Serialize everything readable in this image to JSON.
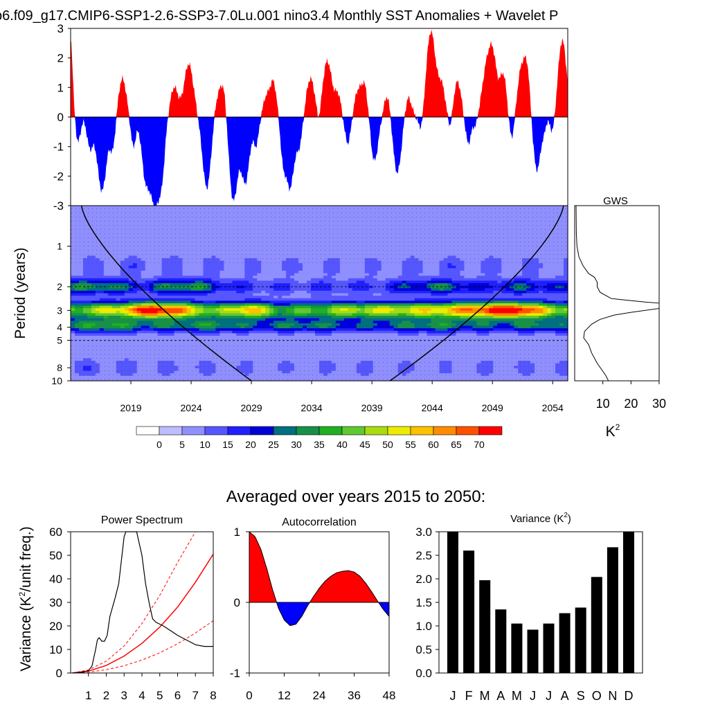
{
  "title": "p6.f09_g17.CMIP6-SSP1-2.6-SSP3-7.0Lu.001 nino3.4 Monthly SST Anomalies + Wavelet P",
  "colors": {
    "positive": "#ff0000",
    "negative": "#0000ff",
    "coi": "#000000",
    "significance_line": "#ff0000",
    "wavelet_levels": [
      "#ffffff",
      "#bdbdff",
      "#8f8fff",
      "#5656ff",
      "#2020ff",
      "#0000d8",
      "#006f80",
      "#189048",
      "#20b020",
      "#60c830",
      "#a8dc10",
      "#ecec00",
      "#ffc000",
      "#ff8c00",
      "#ff5000",
      "#ff0000"
    ]
  },
  "chart_data": [
    {
      "id": "anomaly",
      "type": "area",
      "ylim": [
        -3,
        3
      ],
      "yticks": [
        "3",
        "2",
        "1",
        "0",
        "-1",
        "-2",
        "-3"
      ],
      "x_range": [
        2014.0,
        2055.25
      ],
      "events": [
        [
          2014.0,
          2.6,
          0.22
        ],
        [
          2014.3,
          0.3,
          0.25
        ],
        [
          2014.6,
          -0.9,
          0.3
        ],
        [
          2015.6,
          -1.0,
          0.35
        ],
        [
          2016.6,
          -2.5,
          0.55
        ],
        [
          2017.5,
          -1.0,
          0.3
        ],
        [
          2018.3,
          1.3,
          0.45
        ],
        [
          2019.2,
          -1.0,
          0.3
        ],
        [
          2020.2,
          -1.9,
          0.45
        ],
        [
          2021.0,
          -2.9,
          0.55
        ],
        [
          2021.6,
          -1.4,
          0.35
        ],
        [
          2022.6,
          1.0,
          0.45
        ],
        [
          2023.8,
          1.8,
          0.55
        ],
        [
          2025.3,
          -2.4,
          0.5
        ],
        [
          2026.2,
          0.7,
          0.4
        ],
        [
          2026.7,
          1.0,
          0.35
        ],
        [
          2027.5,
          -2.8,
          0.5
        ],
        [
          2028.5,
          -2.2,
          0.5
        ],
        [
          2029.4,
          -0.9,
          0.3
        ],
        [
          2030.2,
          0.6,
          0.35
        ],
        [
          2030.8,
          1.2,
          0.4
        ],
        [
          2031.6,
          -1.1,
          0.3
        ],
        [
          2032.2,
          -2.4,
          0.5
        ],
        [
          2033.0,
          -0.9,
          0.35
        ],
        [
          2033.9,
          1.3,
          0.5
        ],
        [
          2034.6,
          -0.5,
          0.25
        ],
        [
          2035.3,
          1.9,
          0.55
        ],
        [
          2036.2,
          0.7,
          0.35
        ],
        [
          2037.0,
          -0.9,
          0.35
        ],
        [
          2037.8,
          0.8,
          0.4
        ],
        [
          2038.4,
          1.1,
          0.4
        ],
        [
          2039.2,
          -1.5,
          0.45
        ],
        [
          2040.3,
          0.8,
          0.4
        ],
        [
          2041.1,
          -1.9,
          0.5
        ],
        [
          2042.0,
          0.7,
          0.4
        ],
        [
          2043.1,
          -0.6,
          0.3
        ],
        [
          2043.9,
          2.9,
          0.55
        ],
        [
          2044.8,
          1.0,
          0.4
        ],
        [
          2045.5,
          -0.5,
          0.25
        ],
        [
          2046.1,
          1.2,
          0.45
        ],
        [
          2047.0,
          -0.9,
          0.35
        ],
        [
          2047.6,
          -0.3,
          0.2
        ],
        [
          2048.4,
          1.2,
          0.45
        ],
        [
          2049.0,
          2.2,
          0.5
        ],
        [
          2049.9,
          1.4,
          0.4
        ],
        [
          2050.6,
          -0.8,
          0.3
        ],
        [
          2051.4,
          1.6,
          0.45
        ],
        [
          2051.9,
          1.4,
          0.35
        ],
        [
          2052.7,
          -1.8,
          0.45
        ],
        [
          2053.3,
          -0.3,
          0.2
        ],
        [
          2054.0,
          -0.6,
          0.3
        ],
        [
          2054.8,
          2.6,
          0.5
        ]
      ]
    },
    {
      "id": "wavelet",
      "type": "heatmap",
      "ylabel": "Period (years)",
      "xticks": [
        "2019",
        "2024",
        "2029",
        "2034",
        "2039",
        "2044",
        "2049",
        "2054"
      ],
      "xtick_values": [
        2019,
        2024,
        2029,
        2034,
        2039,
        2044,
        2049,
        2054
      ],
      "yticks": [
        "1",
        "2",
        "3",
        "4",
        "5",
        "8",
        "10"
      ],
      "ytick_values": [
        1,
        2,
        3,
        4,
        5,
        8,
        10
      ],
      "period_range": [
        0.5,
        10
      ],
      "coi_bottom_years": [
        2029.0,
        2040.5
      ],
      "dashed_periods": [
        2,
        5
      ],
      "bands": [
        {
          "period": 3.0,
          "sigma": 0.2,
          "amp": [
            [
              2014,
              34
            ],
            [
              2018,
              48
            ],
            [
              2021,
              72
            ],
            [
              2023,
              58
            ],
            [
              2026,
              35
            ],
            [
              2029,
              55
            ],
            [
              2031,
              32
            ],
            [
              2034,
              34
            ],
            [
              2037,
              42
            ],
            [
              2040,
              44
            ],
            [
              2043,
              46
            ],
            [
              2046,
              54
            ],
            [
              2049,
              68
            ],
            [
              2051,
              72
            ],
            [
              2054,
              42
            ]
          ]
        },
        {
          "period": 2.0,
          "sigma": 0.18,
          "amp": [
            [
              2014,
              24
            ],
            [
              2017,
              26
            ],
            [
              2020,
              14
            ],
            [
              2023,
              28
            ],
            [
              2025,
              25
            ],
            [
              2027,
              12
            ],
            [
              2030,
              9
            ],
            [
              2033,
              8
            ],
            [
              2036,
              10
            ],
            [
              2039,
              9
            ],
            [
              2042,
              18
            ],
            [
              2045,
              24
            ],
            [
              2048,
              12
            ],
            [
              2051,
              20
            ],
            [
              2054,
              16
            ]
          ]
        },
        {
          "period": 3.9,
          "sigma": 0.16,
          "amp": [
            [
              2014,
              22
            ],
            [
              2017,
              30
            ],
            [
              2020,
              20
            ],
            [
              2023,
              22
            ],
            [
              2026,
              26
            ],
            [
              2029,
              18
            ],
            [
              2032,
              22
            ],
            [
              2035,
              22
            ],
            [
              2038,
              16
            ],
            [
              2041,
              20
            ],
            [
              2044,
              26
            ],
            [
              2047,
              20
            ],
            [
              2050,
              18
            ],
            [
              2053,
              24
            ],
            [
              2055,
              18
            ]
          ]
        },
        {
          "period": 1.4,
          "sigma": 0.25,
          "amp": [
            [
              2014,
              4
            ],
            [
              2020,
              5
            ],
            [
              2025,
              4
            ],
            [
              2030,
              3
            ],
            [
              2035,
              3
            ],
            [
              2040,
              3
            ],
            [
              2045,
              5
            ],
            [
              2050,
              4
            ],
            [
              2055,
              3
            ]
          ]
        },
        {
          "period": 8.0,
          "sigma": 0.22,
          "amp": [
            [
              2014,
              6
            ],
            [
              2020,
              4
            ],
            [
              2026,
              3
            ],
            [
              2032,
              2
            ],
            [
              2038,
              3
            ],
            [
              2044,
              2
            ],
            [
              2050,
              3
            ],
            [
              2055,
              4
            ]
          ]
        }
      ],
      "colorbar": {
        "labels": [
          "0",
          "5",
          "10",
          "15",
          "20",
          "25",
          "30",
          "35",
          "40",
          "45",
          "50",
          "55",
          "60",
          "65",
          "70"
        ],
        "levels": [
          0,
          5,
          10,
          15,
          20,
          25,
          30,
          35,
          40,
          45,
          50,
          55,
          60,
          65,
          70
        ]
      }
    },
    {
      "id": "gws",
      "type": "line",
      "title": "GWS",
      "xlim": [
        0,
        30
      ],
      "xticks": [
        "10",
        "20",
        "30"
      ],
      "xlabel": "K",
      "xlabel_sup": "2",
      "points": [
        [
          0.5,
          0.5
        ],
        [
          0.6,
          0.8
        ],
        [
          0.8,
          1.0
        ],
        [
          1.5,
          1.2
        ],
        [
          3,
          1.4
        ],
        [
          5,
          1.6
        ],
        [
          7,
          1.7
        ],
        [
          8,
          1.85
        ],
        [
          8,
          2.0
        ],
        [
          9,
          2.2
        ],
        [
          13,
          2.45
        ],
        [
          25,
          2.6
        ],
        [
          30,
          2.65
        ],
        [
          32,
          2.75
        ],
        [
          30,
          2.9
        ],
        [
          20,
          3.1
        ],
        [
          14,
          3.25
        ],
        [
          9,
          3.5
        ],
        [
          6,
          3.8
        ],
        [
          3.5,
          4.3
        ],
        [
          3.2,
          4.8
        ],
        [
          5,
          5.4
        ],
        [
          6,
          6.2
        ],
        [
          8,
          7.4
        ],
        [
          11,
          9.1
        ],
        [
          12,
          10
        ]
      ]
    },
    {
      "id": "power-spectrum",
      "type": "line",
      "section_title": "Averaged over years 2015 to 2050:",
      "title": "Power Spectrum",
      "ylabel": "Variance (K",
      "ylabel_sup": "2",
      "ylabel_tail": "/unit freq.)",
      "xlim": [
        0,
        8
      ],
      "ylim": [
        0,
        60
      ],
      "xticks": [
        "1",
        "2",
        "3",
        "4",
        "5",
        "6",
        "7",
        "8"
      ],
      "yticks": [
        "0",
        "10",
        "20",
        "30",
        "40",
        "50",
        "60"
      ],
      "spectrum": [
        [
          0.1,
          0
        ],
        [
          0.6,
          0.3
        ],
        [
          1.0,
          1
        ],
        [
          1.2,
          3
        ],
        [
          1.4,
          10
        ],
        [
          1.5,
          14
        ],
        [
          1.6,
          15
        ],
        [
          1.75,
          13.5
        ],
        [
          1.9,
          13.5
        ],
        [
          2.05,
          16
        ],
        [
          2.2,
          24
        ],
        [
          2.5,
          32
        ],
        [
          2.7,
          38
        ],
        [
          2.85,
          48
        ],
        [
          3.0,
          58
        ],
        [
          3.1,
          62
        ],
        [
          3.7,
          62
        ],
        [
          4.0,
          50
        ],
        [
          4.2,
          38
        ],
        [
          4.4,
          30
        ],
        [
          4.6,
          23
        ],
        [
          4.8,
          21.5
        ],
        [
          5.2,
          20
        ],
        [
          5.6,
          18
        ],
        [
          6.0,
          16
        ],
        [
          6.5,
          14
        ],
        [
          7.0,
          12
        ],
        [
          7.5,
          11.3
        ],
        [
          8.0,
          11.3
        ]
      ],
      "red_noise": [
        [
          0.1,
          0.02
        ],
        [
          1,
          0.8
        ],
        [
          2,
          3.2
        ],
        [
          3,
          7.2
        ],
        [
          4,
          12.6
        ],
        [
          5,
          19.5
        ],
        [
          6,
          28
        ],
        [
          7,
          38.6
        ],
        [
          8,
          50.5
        ]
      ],
      "conf_upper": [
        [
          0.1,
          0.03
        ],
        [
          1,
          1.3
        ],
        [
          2,
          5
        ],
        [
          3,
          11.5
        ],
        [
          4,
          21
        ],
        [
          5,
          33
        ],
        [
          6,
          47
        ],
        [
          7,
          60
        ]
      ],
      "conf_lower": [
        [
          0.1,
          0.01
        ],
        [
          1,
          0.35
        ],
        [
          2,
          1.4
        ],
        [
          3,
          3.1
        ],
        [
          4,
          5.5
        ],
        [
          5,
          8.6
        ],
        [
          6,
          12.4
        ],
        [
          7,
          17
        ],
        [
          8,
          22.2
        ]
      ]
    },
    {
      "id": "autocorrelation",
      "type": "area",
      "title": "Autocorrelation",
      "xlim": [
        0,
        48
      ],
      "ylim": [
        -1,
        1
      ],
      "xticks": [
        "0",
        "12",
        "24",
        "36",
        "48"
      ],
      "yticks": [
        "1",
        "0",
        "-1"
      ],
      "points": [
        [
          0,
          1
        ],
        [
          2,
          0.93
        ],
        [
          4,
          0.75
        ],
        [
          6,
          0.48
        ],
        [
          8,
          0.18
        ],
        [
          10,
          -0.08
        ],
        [
          12,
          -0.25
        ],
        [
          14,
          -0.33
        ],
        [
          16,
          -0.31
        ],
        [
          18,
          -0.2
        ],
        [
          20,
          -0.05
        ],
        [
          22,
          0.08
        ],
        [
          24,
          0.2
        ],
        [
          26,
          0.3
        ],
        [
          28,
          0.37
        ],
        [
          30,
          0.42
        ],
        [
          32,
          0.44
        ],
        [
          34,
          0.45
        ],
        [
          36,
          0.43
        ],
        [
          38,
          0.37
        ],
        [
          40,
          0.27
        ],
        [
          42,
          0.15
        ],
        [
          44,
          0.02
        ],
        [
          46,
          -0.1
        ],
        [
          48,
          -0.2
        ]
      ]
    },
    {
      "id": "variance",
      "type": "bar",
      "title": "Variance (K",
      "title_sup": "2",
      "title_tail": ")",
      "ylim": [
        0,
        3
      ],
      "yticks": [
        "0.0",
        "0.5",
        "1.0",
        "1.5",
        "2.0",
        "2.5",
        "3.0"
      ],
      "categories": [
        "J",
        "F",
        "M",
        "A",
        "M",
        "J",
        "J",
        "A",
        "S",
        "O",
        "N",
        "D"
      ],
      "values": [
        3.0,
        2.6,
        1.97,
        1.35,
        1.05,
        0.92,
        1.05,
        1.27,
        1.39,
        2.04,
        2.67,
        3.0
      ]
    }
  ]
}
